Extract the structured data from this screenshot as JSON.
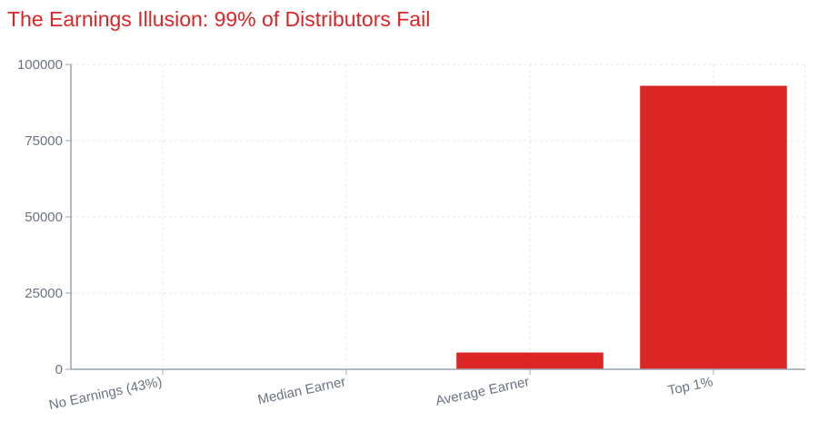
{
  "chart_data": {
    "type": "bar",
    "title": "The Earnings Illusion: 99% of Distributors Fail",
    "xlabel": "",
    "ylabel": "",
    "categories": [
      "No Earnings (43%)",
      "Median Earner",
      "Average Earner",
      "Top 1%"
    ],
    "values": [
      0,
      100,
      5500,
      93000
    ],
    "ylim": [
      0,
      100000
    ],
    "yticks": [
      0,
      25000,
      50000,
      75000,
      100000
    ],
    "ytick_labels": [
      "0",
      "25000",
      "50000",
      "75000",
      "100000"
    ],
    "grid": true,
    "legend": false,
    "bar_color": "#dc2626"
  },
  "colors": {
    "title": "#d92626",
    "bar": "#dc2626",
    "axis": "#9ca3af",
    "grid": "#e5e7eb",
    "tick_text": "#6b7280"
  }
}
